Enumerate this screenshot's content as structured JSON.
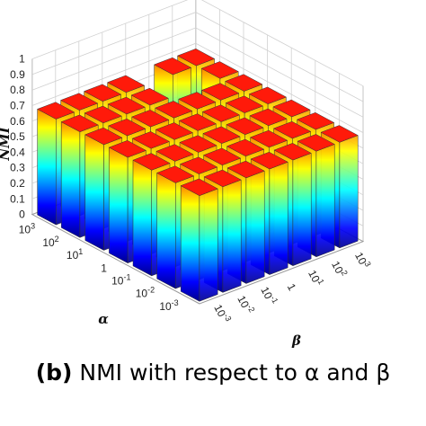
{
  "chart_data": {
    "type": "bar3d",
    "title": "",
    "zlabel": "NMI",
    "xlabel": "α",
    "ylabel": "β",
    "zlim": [
      0,
      1
    ],
    "grid": true,
    "colormap": "jet",
    "z_ticks": [
      "0",
      "0.1",
      "0.2",
      "0.3",
      "0.4",
      "0.5",
      "0.6",
      "0.7",
      "0.8",
      "0.9",
      "1"
    ],
    "alpha_categories": [
      {
        "base": "10",
        "exp": "-3"
      },
      {
        "base": "10",
        "exp": "-2"
      },
      {
        "base": "10",
        "exp": "-1"
      },
      {
        "base": "1",
        "exp": ""
      },
      {
        "base": "10",
        "exp": "1"
      },
      {
        "base": "10",
        "exp": "2"
      },
      {
        "base": "10",
        "exp": "3"
      }
    ],
    "beta_categories": [
      {
        "base": "10",
        "exp": "-3"
      },
      {
        "base": "10",
        "exp": "-2"
      },
      {
        "base": "10",
        "exp": "-1"
      },
      {
        "base": "1",
        "exp": ""
      },
      {
        "base": "10",
        "exp": "1"
      },
      {
        "base": "10",
        "exp": "2"
      },
      {
        "base": "10",
        "exp": "3"
      }
    ],
    "values": [
      [
        0.68,
        0.68,
        0.68,
        0.68,
        0.68,
        0.68,
        0.68
      ],
      [
        0.68,
        0.68,
        0.68,
        0.68,
        0.68,
        0.68,
        0.68
      ],
      [
        0.68,
        0.68,
        0.68,
        0.68,
        0.68,
        0.68,
        0.68
      ],
      [
        0.68,
        0.68,
        0.68,
        0.68,
        0.68,
        0.68,
        0.68
      ],
      [
        0.68,
        0.68,
        0.68,
        0.68,
        0.68,
        0.68,
        0.68
      ],
      [
        0.68,
        0.68,
        0.68,
        0.68,
        0.42,
        0.42,
        0.68
      ],
      [
        0.68,
        0.68,
        0.68,
        0.68,
        0.42,
        0.68,
        0.68
      ]
    ]
  },
  "caption": {
    "tag": "(b)",
    "text": " NMI with respect to α  and  β"
  }
}
